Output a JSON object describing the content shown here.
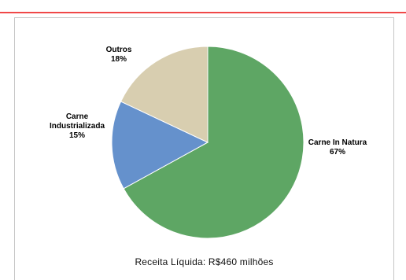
{
  "colors": {
    "top_bar": "#f04848",
    "frame_border": "#c6c6c6"
  },
  "chart_data": {
    "type": "pie",
    "slices": [
      {
        "category": "Carne In Natura",
        "value": 67,
        "label_pct": "67%",
        "color": "#5ea664",
        "label_lines": [
          "Carne In Natura"
        ]
      },
      {
        "category": "Carne Industrializada",
        "value": 15,
        "label_pct": "15%",
        "color": "#6591cc",
        "label_lines": [
          "Carne",
          "Industrializada"
        ]
      },
      {
        "category": "Outros",
        "value": 18,
        "label_pct": "18%",
        "color": "#d8ceb0",
        "label_lines": [
          "Outros"
        ]
      }
    ],
    "start_angle_deg": 0,
    "direction": "clockwise",
    "caption": "Receita Líquida: R$460 milhões"
  }
}
